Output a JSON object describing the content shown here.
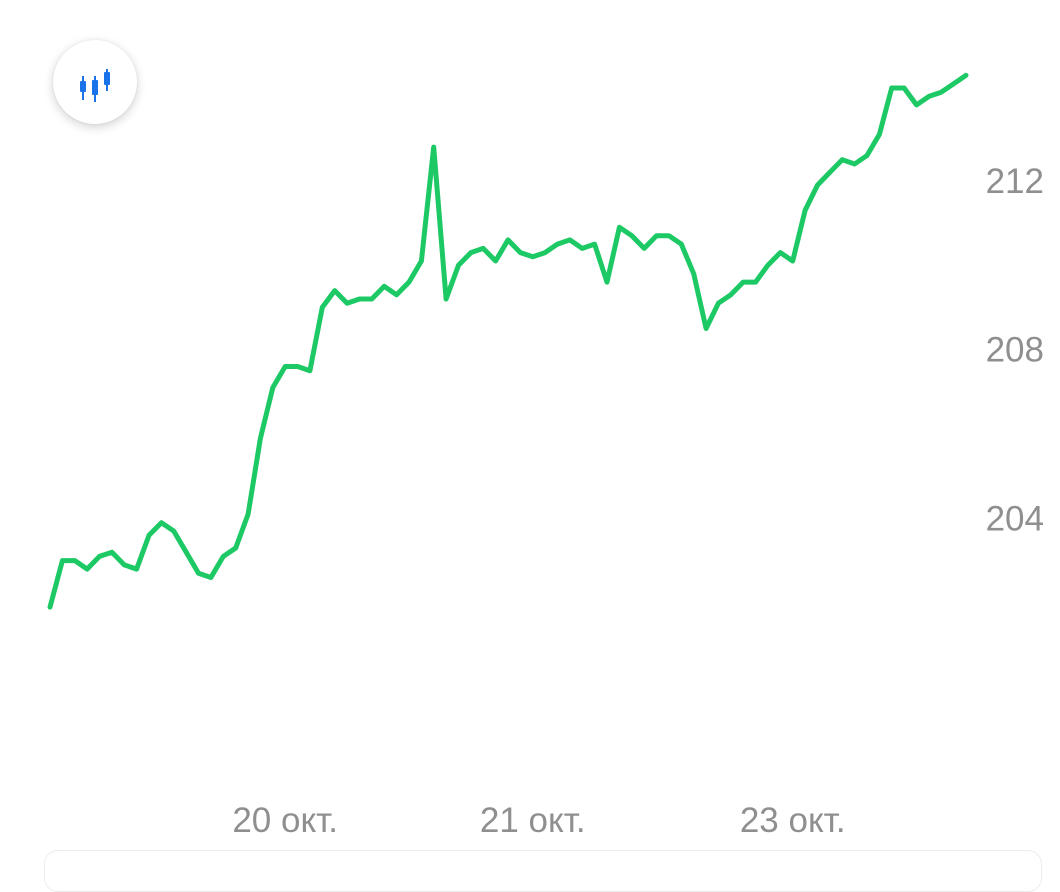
{
  "toolbar": {
    "chart_type_icon": "candlestick-icon",
    "icon_color": "#1a73e8"
  },
  "chart_data": {
    "type": "line",
    "line_color": "#1dc964",
    "grid": false,
    "y_axis_position": "right",
    "ylim": [
      199.2,
      214.2
    ],
    "y_ticks": [
      {
        "value": 204,
        "label": "204"
      },
      {
        "value": 208,
        "label": "208"
      },
      {
        "value": 212,
        "label": "212"
      }
    ],
    "x_ticks": [
      {
        "label": "20 окт.",
        "at_index": 19
      },
      {
        "label": "21 окт.",
        "at_index": 39
      },
      {
        "label": "23 окт.",
        "at_index": 60
      }
    ],
    "series": [
      {
        "values": [
          201.9,
          203.0,
          203.0,
          202.8,
          203.1,
          203.2,
          202.9,
          202.8,
          203.6,
          203.9,
          203.7,
          203.2,
          202.7,
          202.6,
          203.1,
          203.3,
          204.1,
          205.9,
          207.1,
          207.6,
          207.6,
          207.5,
          209.0,
          209.4,
          209.1,
          209.2,
          209.2,
          209.5,
          209.3,
          209.6,
          210.1,
          212.8,
          209.2,
          210.0,
          210.3,
          210.4,
          210.1,
          210.6,
          210.3,
          210.2,
          210.3,
          210.5,
          210.6,
          210.4,
          210.5,
          209.6,
          210.9,
          210.7,
          210.4,
          210.7,
          210.7,
          210.5,
          209.8,
          208.5,
          209.1,
          209.3,
          209.6,
          209.6,
          210.0,
          210.3,
          210.1,
          211.3,
          211.9,
          212.2,
          212.5,
          212.4,
          212.6,
          213.1,
          214.2,
          214.2,
          213.8,
          214.0,
          214.1,
          214.3,
          214.5
        ]
      }
    ]
  }
}
